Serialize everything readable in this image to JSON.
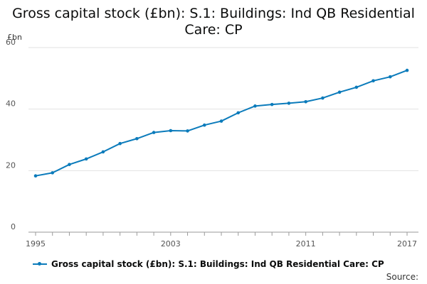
{
  "chart_data": {
    "type": "line",
    "title_lines": [
      "Gross capital stock (£bn): S.1: Buildings: Ind QB Residential",
      "Care: CP"
    ],
    "ylabel": "£bn",
    "xlabel": "",
    "ylim": [
      0,
      60
    ],
    "yticks": [
      "0",
      "20",
      "40",
      "60"
    ],
    "xlim": [
      1995,
      2017
    ],
    "xticks": [
      "1995",
      "2003",
      "2011",
      "2017"
    ],
    "grid": true,
    "legend_position": "bottom",
    "series": [
      {
        "name": "Gross capital stock (£bn): S.1: Buildings: Ind QB Residential Care: CP",
        "color": "#0b7bbb",
        "x": [
          1995,
          1996,
          1997,
          1998,
          1999,
          2000,
          2001,
          2002,
          2003,
          2004,
          2005,
          2006,
          2007,
          2008,
          2009,
          2010,
          2011,
          2012,
          2013,
          2014,
          2015,
          2016,
          2017
        ],
        "values": [
          18.3,
          19.3,
          22.0,
          23.8,
          26.1,
          28.8,
          30.4,
          32.4,
          33.0,
          32.9,
          34.8,
          36.1,
          38.8,
          41.0,
          41.5,
          41.9,
          42.4,
          43.6,
          45.5,
          47.1,
          49.2,
          50.5,
          52.6
        ]
      }
    ],
    "source_label": "Source:"
  }
}
